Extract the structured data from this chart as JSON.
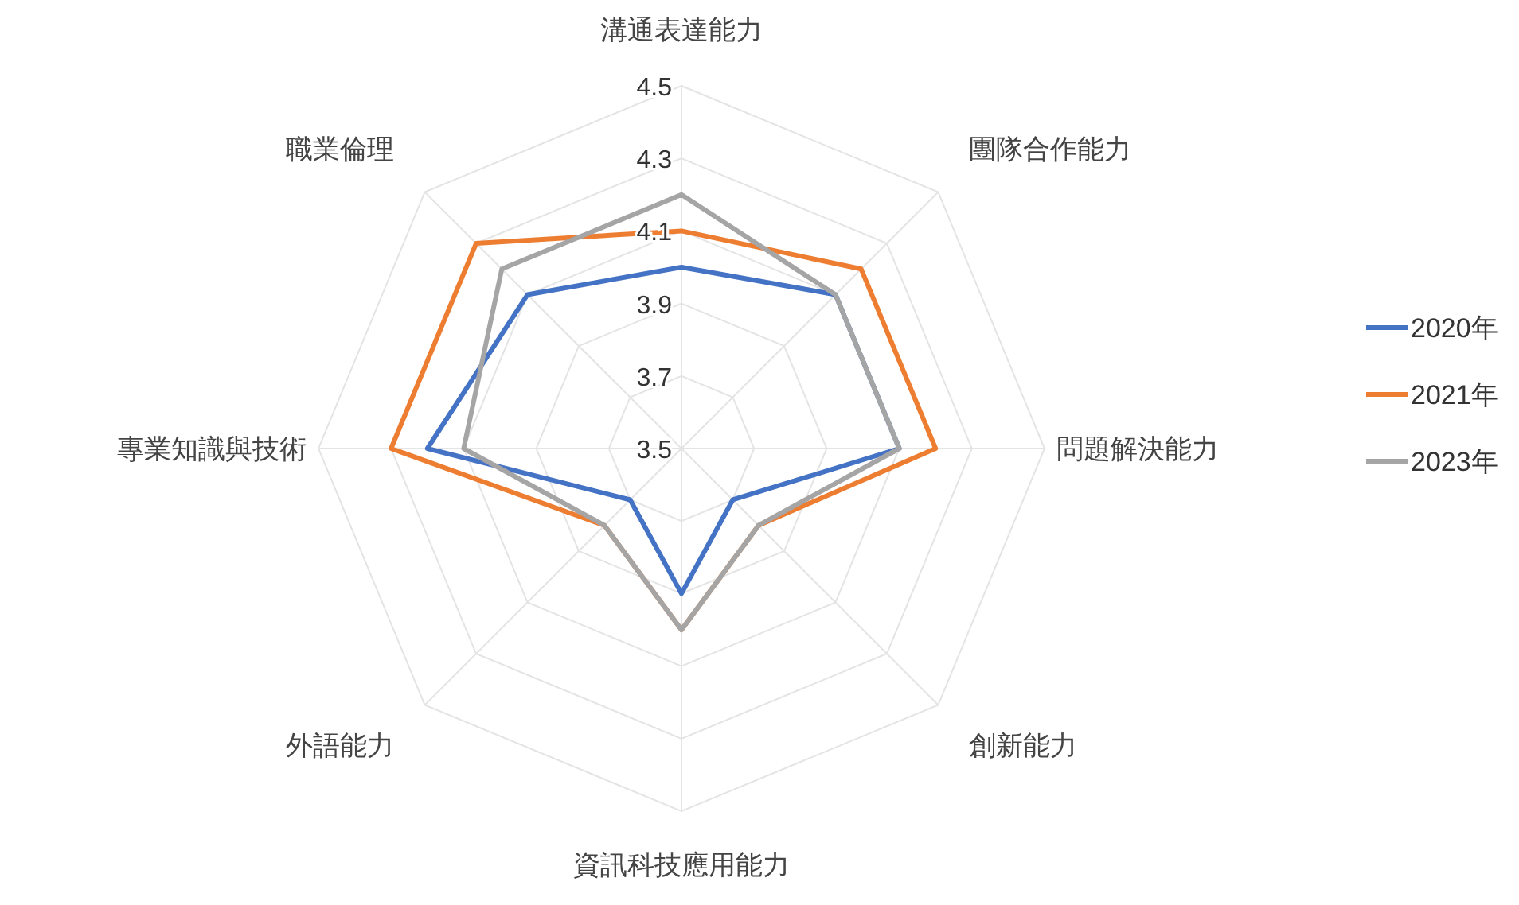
{
  "chart_data": {
    "type": "radar",
    "categories": [
      "溝通表達能力",
      "團隊合作能力",
      "問題解決能力",
      "創新能力",
      "資訊科技應用能力",
      "外語能力",
      "專業知識與技術",
      "職業倫理"
    ],
    "series": [
      {
        "name": "2020年",
        "color": "#4472c4",
        "values": [
          4.0,
          4.1,
          4.1,
          3.7,
          3.9,
          3.7,
          4.2,
          4.1
        ]
      },
      {
        "name": "2021年",
        "color": "#ed7d31",
        "values": [
          4.1,
          4.2,
          4.2,
          3.8,
          4.0,
          3.8,
          4.3,
          4.3
        ]
      },
      {
        "name": "2023年",
        "color": "#a5a5a5",
        "values": [
          4.2,
          4.1,
          4.1,
          3.8,
          4.0,
          3.8,
          4.1,
          4.2
        ]
      }
    ],
    "ylim": [
      3.5,
      4.5
    ],
    "yticks": [
      3.5,
      3.7,
      3.9,
      4.1,
      4.3,
      4.5
    ],
    "grid": true,
    "legend": "right"
  }
}
